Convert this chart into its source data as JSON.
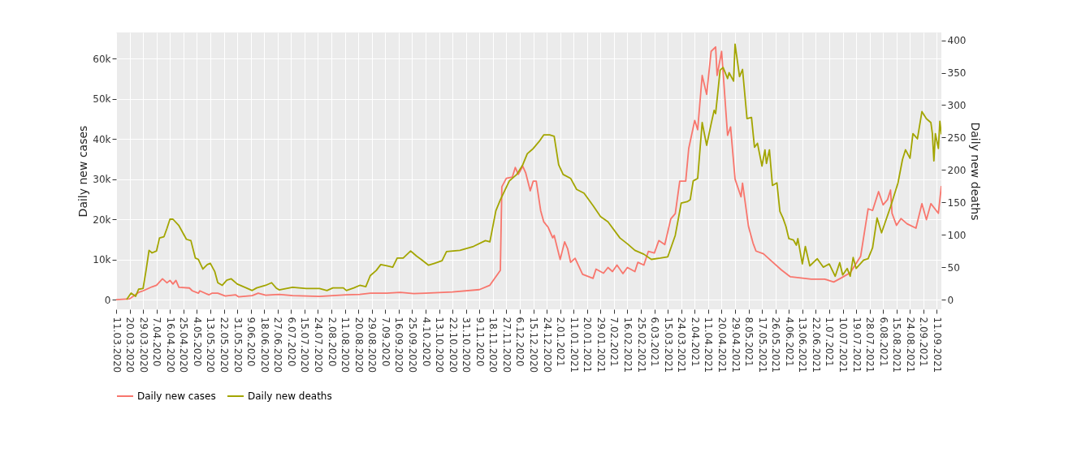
{
  "chart_data": {
    "type": "line",
    "ylabel": "Daily new cases",
    "y2label": "Daily new deaths",
    "legend": "bottom",
    "grid": true,
    "xlim": [
      "2020-03-11",
      "2021-09-14"
    ],
    "ylim": [
      -2400,
      66500
    ],
    "y2lim": [
      -15,
      412
    ],
    "yticks": [
      0,
      {
        "value": 10000,
        "label": "10k"
      },
      {
        "value": 20000,
        "label": "20k"
      },
      {
        "value": 30000,
        "label": "30k"
      },
      {
        "value": 40000,
        "label": "40k"
      },
      {
        "value": 50000,
        "label": "50k"
      },
      {
        "value": 60000,
        "label": "60k"
      }
    ],
    "y2ticks": [
      0,
      50,
      100,
      150,
      200,
      250,
      300,
      350,
      400
    ],
    "xticks": [
      {
        "value": "2020-03-11",
        "label": "11.03.2020"
      },
      {
        "value": "2020-03-20",
        "label": "20.03.2020"
      },
      {
        "value": "2020-03-29",
        "label": "29.03.2020"
      },
      {
        "value": "2020-04-07",
        "label": "7.04.2020"
      },
      {
        "value": "2020-04-16",
        "label": "16.04.2020"
      },
      {
        "value": "2020-04-25",
        "label": "25.04.2020"
      },
      {
        "value": "2020-05-04",
        "label": "4.05.2020"
      },
      {
        "value": "2020-05-13",
        "label": "13.05.2020"
      },
      {
        "value": "2020-05-22",
        "label": "22.05.2020"
      },
      {
        "value": "2020-05-31",
        "label": "31.05.2020"
      },
      {
        "value": "2020-06-09",
        "label": "9.06.2020"
      },
      {
        "value": "2020-06-18",
        "label": "18.06.2020"
      },
      {
        "value": "2020-06-27",
        "label": "27.06.2020"
      },
      {
        "value": "2020-07-06",
        "label": "6.07.2020"
      },
      {
        "value": "2020-07-15",
        "label": "15.07.2020"
      },
      {
        "value": "2020-07-24",
        "label": "24.07.2020"
      },
      {
        "value": "2020-08-02",
        "label": "2.08.2020"
      },
      {
        "value": "2020-08-11",
        "label": "11.08.2020"
      },
      {
        "value": "2020-08-20",
        "label": "20.08.2020"
      },
      {
        "value": "2020-08-29",
        "label": "29.08.2020"
      },
      {
        "value": "2020-09-07",
        "label": "7.09.2020"
      },
      {
        "value": "2020-09-16",
        "label": "16.09.2020"
      },
      {
        "value": "2020-09-25",
        "label": "25.09.2020"
      },
      {
        "value": "2020-10-04",
        "label": "4.10.2020"
      },
      {
        "value": "2020-10-13",
        "label": "13.10.2020"
      },
      {
        "value": "2020-10-22",
        "label": "22.10.2020"
      },
      {
        "value": "2020-10-31",
        "label": "31.10.2020"
      },
      {
        "value": "2020-11-09",
        "label": "9.11.2020"
      },
      {
        "value": "2020-11-18",
        "label": "18.11.2020"
      },
      {
        "value": "2020-11-27",
        "label": "27.11.2020"
      },
      {
        "value": "2020-12-06",
        "label": "6.12.2020"
      },
      {
        "value": "2020-12-15",
        "label": "15.12.2020"
      },
      {
        "value": "2020-12-24",
        "label": "24.12.2020"
      },
      {
        "value": "2021-01-02",
        "label": "2.01.2021"
      },
      {
        "value": "2021-01-11",
        "label": "11.01.2021"
      },
      {
        "value": "2021-01-20",
        "label": "20.01.2021"
      },
      {
        "value": "2021-01-29",
        "label": "29.01.2021"
      },
      {
        "value": "2021-02-07",
        "label": "7.02.2021"
      },
      {
        "value": "2021-02-16",
        "label": "16.02.2021"
      },
      {
        "value": "2021-02-25",
        "label": "25.02.2021"
      },
      {
        "value": "2021-03-06",
        "label": "6.03.2021"
      },
      {
        "value": "2021-03-15",
        "label": "15.03.2021"
      },
      {
        "value": "2021-03-24",
        "label": "24.03.2021"
      },
      {
        "value": "2021-04-02",
        "label": "2.04.2021"
      },
      {
        "value": "2021-04-11",
        "label": "11.04.2021"
      },
      {
        "value": "2021-04-20",
        "label": "20.04.2021"
      },
      {
        "value": "2021-04-29",
        "label": "29.04.2021"
      },
      {
        "value": "2021-05-08",
        "label": "8.05.2021"
      },
      {
        "value": "2021-05-17",
        "label": "17.05.2021"
      },
      {
        "value": "2021-05-26",
        "label": "26.05.2021"
      },
      {
        "value": "2021-06-04",
        "label": "4.06.2021"
      },
      {
        "value": "2021-06-13",
        "label": "13.06.2021"
      },
      {
        "value": "2021-06-22",
        "label": "22.06.2021"
      },
      {
        "value": "2021-07-01",
        "label": "1.07.2021"
      },
      {
        "value": "2021-07-10",
        "label": "10.07.2021"
      },
      {
        "value": "2021-07-19",
        "label": "19.07.2021"
      },
      {
        "value": "2021-07-28",
        "label": "28.07.2021"
      },
      {
        "value": "2021-08-06",
        "label": "6.08.2021"
      },
      {
        "value": "2021-08-15",
        "label": "15.08.2021"
      },
      {
        "value": "2021-08-24",
        "label": "24.08.2021"
      },
      {
        "value": "2021-09-02",
        "label": "2.09.2021"
      },
      {
        "value": "2021-09-11",
        "label": "11.09.2021"
      }
    ],
    "series": [
      {
        "name": "Daily new cases",
        "color": "#f8766d",
        "x": [
          "2020-03-11",
          "2020-03-20",
          "2020-03-26",
          "2020-03-29",
          "2020-04-04",
          "2020-04-07",
          "2020-04-11",
          "2020-04-14",
          "2020-04-16",
          "2020-04-18",
          "2020-04-20",
          "2020-04-22",
          "2020-04-29",
          "2020-05-01",
          "2020-05-05",
          "2020-05-06",
          "2020-05-12",
          "2020-05-14",
          "2020-05-18",
          "2020-05-23",
          "2020-05-30",
          "2020-06-01",
          "2020-06-10",
          "2020-06-14",
          "2020-06-19",
          "2020-06-28",
          "2020-07-07",
          "2020-07-25",
          "2020-08-12",
          "2020-08-21",
          "2020-08-28",
          "2020-09-08",
          "2020-09-17",
          "2020-09-26",
          "2020-10-04",
          "2020-10-22",
          "2020-11-09",
          "2020-11-16",
          "2020-11-23",
          "2020-11-24",
          "2020-11-27",
          "2020-12-01",
          "2020-12-03",
          "2020-12-05",
          "2020-12-08",
          "2020-12-10",
          "2020-12-13",
          "2020-12-15",
          "2020-12-17",
          "2020-12-20",
          "2020-12-22",
          "2020-12-25",
          "2020-12-28",
          "2020-12-29",
          "2021-01-02",
          "2021-01-05",
          "2021-01-07",
          "2021-01-09",
          "2021-01-12",
          "2021-01-17",
          "2021-01-24",
          "2021-01-26",
          "2021-01-31",
          "2021-02-03",
          "2021-02-06",
          "2021-02-09",
          "2021-02-13",
          "2021-02-16",
          "2021-02-21",
          "2021-02-23",
          "2021-02-27",
          "2021-03-02",
          "2021-03-06",
          "2021-03-09",
          "2021-03-13",
          "2021-03-17",
          "2021-03-20",
          "2021-03-23",
          "2021-03-27",
          "2021-03-29",
          "2021-04-02",
          "2021-04-04",
          "2021-04-07",
          "2021-04-10",
          "2021-04-13",
          "2021-04-16",
          "2021-04-17",
          "2021-04-20",
          "2021-04-24",
          "2021-04-26",
          "2021-04-29",
          "2021-05-03",
          "2021-05-04",
          "2021-05-08",
          "2021-05-11",
          "2021-05-13",
          "2021-05-18",
          "2021-05-24",
          "2021-05-30",
          "2021-06-05",
          "2021-06-12",
          "2021-06-19",
          "2021-06-28",
          "2021-07-04",
          "2021-07-09",
          "2021-07-15",
          "2021-07-22",
          "2021-07-27",
          "2021-07-30",
          "2021-08-03",
          "2021-08-06",
          "2021-08-09",
          "2021-08-11",
          "2021-08-12",
          "2021-08-15",
          "2021-08-18",
          "2021-08-22",
          "2021-08-28",
          "2021-09-01",
          "2021-09-04",
          "2021-09-07",
          "2021-09-12",
          "2021-09-14"
        ],
        "values": [
          0,
          200,
          1800,
          2200,
          3200,
          3600,
          5200,
          4200,
          4800,
          3900,
          4800,
          3100,
          2900,
          2200,
          1600,
          2200,
          1200,
          1600,
          1600,
          900,
          1200,
          700,
          1000,
          1600,
          1100,
          1300,
          1000,
          800,
          1200,
          1300,
          1600,
          1600,
          1800,
          1500,
          1600,
          1900,
          2500,
          3600,
          7300,
          28100,
          30200,
          30500,
          32900,
          31200,
          33200,
          31500,
          27100,
          29500,
          29500,
          22100,
          19400,
          18000,
          15400,
          16000,
          10000,
          14400,
          12700,
          9300,
          10300,
          6300,
          5300,
          7600,
          6600,
          8000,
          7000,
          8600,
          6500,
          8000,
          7000,
          9300,
          8600,
          12000,
          11600,
          14700,
          13700,
          20100,
          21400,
          29500,
          29500,
          37600,
          44600,
          42300,
          55800,
          51100,
          61800,
          62900,
          55800,
          61800,
          40900,
          43000,
          30000,
          25600,
          29000,
          18200,
          14100,
          12100,
          11400,
          9400,
          7400,
          5700,
          5400,
          5100,
          5100,
          4400,
          5400,
          6700,
          10800,
          22600,
          22200,
          26900,
          23600,
          24900,
          27300,
          21500,
          18500,
          20200,
          18900,
          17800,
          23900,
          19900,
          23900,
          21500,
          28300
        ]
      },
      {
        "name": "Daily new deaths",
        "color": "#a3a500",
        "axis": "y2",
        "x": [
          "2020-03-18",
          "2020-03-21",
          "2020-03-24",
          "2020-03-26",
          "2020-03-29",
          "2020-03-31",
          "2020-04-02",
          "2020-04-04",
          "2020-04-07",
          "2020-04-09",
          "2020-04-12",
          "2020-04-14",
          "2020-04-16",
          "2020-04-18",
          "2020-04-22",
          "2020-04-27",
          "2020-04-30",
          "2020-05-03",
          "2020-05-05",
          "2020-05-08",
          "2020-05-11",
          "2020-05-13",
          "2020-05-16",
          "2020-05-18",
          "2020-05-21",
          "2020-05-24",
          "2020-05-27",
          "2020-05-31",
          "2020-06-06",
          "2020-06-10",
          "2020-06-13",
          "2020-06-19",
          "2020-06-23",
          "2020-06-26",
          "2020-06-28",
          "2020-07-07",
          "2020-07-16",
          "2020-07-25",
          "2020-07-30",
          "2020-08-03",
          "2020-08-10",
          "2020-08-12",
          "2020-08-17",
          "2020-08-21",
          "2020-08-25",
          "2020-08-28",
          "2020-09-01",
          "2020-09-04",
          "2020-09-08",
          "2020-09-12",
          "2020-09-15",
          "2020-09-19",
          "2020-09-24",
          "2020-09-28",
          "2020-10-01",
          "2020-10-06",
          "2020-10-10",
          "2020-10-15",
          "2020-10-18",
          "2020-10-27",
          "2020-11-05",
          "2020-11-13",
          "2020-11-16",
          "2020-11-20",
          "2020-11-23",
          "2020-11-29",
          "2020-12-04",
          "2020-12-08",
          "2020-12-11",
          "2020-12-15",
          "2020-12-19",
          "2020-12-22",
          "2020-12-26",
          "2020-12-29",
          "2021-01-01",
          "2021-01-04",
          "2021-01-09",
          "2021-01-13",
          "2021-01-18",
          "2021-01-24",
          "2021-01-29",
          "2021-02-03",
          "2021-02-11",
          "2021-02-16",
          "2021-02-21",
          "2021-02-27",
          "2021-03-04",
          "2021-03-10",
          "2021-03-15",
          "2021-03-20",
          "2021-03-24",
          "2021-03-28",
          "2021-03-30",
          "2021-04-01",
          "2021-04-04",
          "2021-04-07",
          "2021-04-10",
          "2021-04-13",
          "2021-04-15",
          "2021-04-16",
          "2021-04-19",
          "2021-04-21",
          "2021-04-24",
          "2021-04-25",
          "2021-04-28",
          "2021-04-29",
          "2021-05-02",
          "2021-05-04",
          "2021-05-07",
          "2021-05-10",
          "2021-05-12",
          "2021-05-14",
          "2021-05-17",
          "2021-05-19",
          "2021-05-20",
          "2021-05-22",
          "2021-05-24",
          "2021-05-27",
          "2021-05-29",
          "2021-05-31",
          "2021-06-02",
          "2021-06-04",
          "2021-06-07",
          "2021-06-09",
          "2021-06-10",
          "2021-06-13",
          "2021-06-15",
          "2021-06-18",
          "2021-06-23",
          "2021-06-27",
          "2021-07-01",
          "2021-07-05",
          "2021-07-08",
          "2021-07-10",
          "2021-07-13",
          "2021-07-15",
          "2021-07-17",
          "2021-07-19",
          "2021-07-24",
          "2021-07-27",
          "2021-07-30",
          "2021-08-02",
          "2021-08-05",
          "2021-08-11",
          "2021-08-16",
          "2021-08-19",
          "2021-08-21",
          "2021-08-24",
          "2021-08-26",
          "2021-08-29",
          "2021-09-01",
          "2021-09-04",
          "2021-09-07",
          "2021-09-08",
          "2021-09-09",
          "2021-09-10",
          "2021-09-12",
          "2021-09-13",
          "2021-09-14"
        ],
        "values": [
          0,
          10,
          5,
          16,
          17,
          45,
          76,
          72,
          75,
          95,
          97,
          110,
          124,
          124,
          114,
          93,
          91,
          64,
          62,
          47,
          54,
          56,
          43,
          26,
          22,
          30,
          32,
          24,
          18,
          14,
          18,
          22,
          26,
          18,
          15,
          19,
          17,
          17,
          14,
          18,
          18,
          14,
          18,
          22,
          20,
          37,
          45,
          54,
          52,
          50,
          64,
          64,
          75,
          67,
          62,
          53,
          56,
          60,
          74,
          76,
          82,
          91,
          89,
          137,
          154,
          183,
          193,
          208,
          225,
          233,
          244,
          254,
          254,
          252,
          208,
          193,
          187,
          170,
          164,
          145,
          128,
          120,
          95,
          86,
          76,
          70,
          62,
          64,
          66,
          99,
          149,
          151,
          154,
          183,
          187,
          273,
          238,
          271,
          292,
          287,
          354,
          358,
          341,
          350,
          337,
          394,
          344,
          355,
          279,
          281,
          235,
          241,
          206,
          231,
          210,
          231,
          176,
          180,
          136,
          126,
          113,
          94,
          92,
          84,
          94,
          55,
          82,
          52,
          63,
          50,
          55,
          36,
          57,
          38,
          48,
          36,
          65,
          48,
          61,
          63,
          80,
          126,
          103,
          143,
          180,
          216,
          231,
          218,
          256,
          248,
          290,
          279,
          273,
          256,
          214,
          256,
          233,
          275,
          255
        ]
      }
    ]
  }
}
